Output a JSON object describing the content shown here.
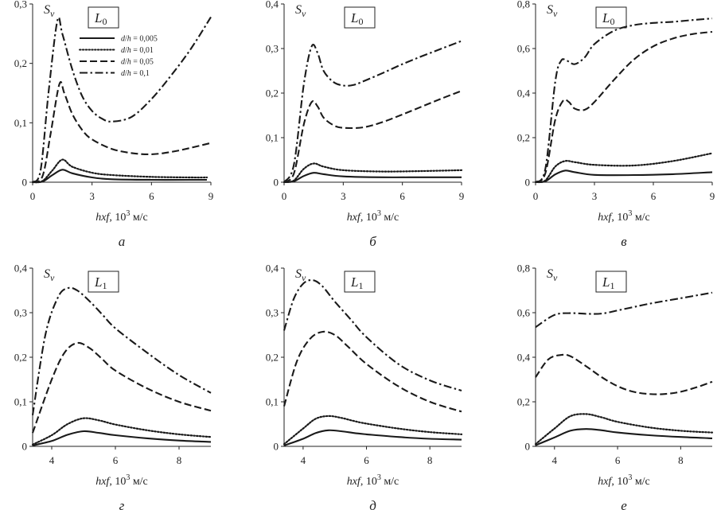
{
  "figure": {
    "legend": [
      {
        "label": "d/h = 0,005",
        "style": "solid"
      },
      {
        "label": "d/h = 0,01",
        "style": "dotted"
      },
      {
        "label": "d/h = 0,05",
        "style": "dashed"
      },
      {
        "label": "d/h = 0,1",
        "style": "dashdot"
      }
    ]
  },
  "chart_data": [
    {
      "type": "line",
      "panel_label": "а",
      "mode_label": "L",
      "mode_sub": "0",
      "ylabel": "S",
      "ylabel_sub": "v",
      "xlabel": "hxf, 10",
      "xlabel_sup": "3",
      "xlabel_unit": " м/с",
      "xlim": [
        0,
        9
      ],
      "ylim": [
        0,
        0.3
      ],
      "xticks": [
        0,
        3,
        6,
        9
      ],
      "xtick_labels": [
        "0",
        "3",
        "6",
        "9"
      ],
      "yticks": [
        0,
        0.1,
        0.2,
        0.3
      ],
      "ytick_labels": [
        "0",
        "0,1",
        "0,2",
        "0,3"
      ],
      "series": [
        {
          "name": "d/h = 0,005",
          "x": [
            0,
            0.5,
            1,
            1.5,
            2,
            3,
            4,
            6,
            8,
            8.8
          ],
          "y": [
            0,
            0.001,
            0.012,
            0.021,
            0.015,
            0.008,
            0.005,
            0.004,
            0.004,
            0.004
          ]
        },
        {
          "name": "d/h = 0,01",
          "x": [
            0,
            0.5,
            1,
            1.5,
            2,
            3,
            4,
            6,
            8,
            8.8
          ],
          "y": [
            0,
            0.002,
            0.02,
            0.038,
            0.026,
            0.016,
            0.012,
            0.009,
            0.008,
            0.008
          ]
        },
        {
          "name": "d/h = 0,05",
          "x": [
            0,
            0.5,
            0.9,
            1.35,
            1.6,
            2,
            2.5,
            3,
            4,
            5,
            6,
            7,
            8,
            9
          ],
          "y": [
            0,
            0.01,
            0.08,
            0.165,
            0.15,
            0.115,
            0.088,
            0.072,
            0.056,
            0.049,
            0.047,
            0.051,
            0.058,
            0.066
          ]
        },
        {
          "name": "d/h = 0,1",
          "x": [
            0,
            0.4,
            0.8,
            1.25,
            1.5,
            2,
            2.5,
            3,
            3.5,
            4,
            5,
            6,
            7,
            8,
            9
          ],
          "y": [
            0,
            0.02,
            0.15,
            0.272,
            0.25,
            0.19,
            0.145,
            0.12,
            0.107,
            0.102,
            0.11,
            0.14,
            0.18,
            0.225,
            0.278
          ]
        }
      ]
    },
    {
      "type": "line",
      "panel_label": "б",
      "mode_label": "L",
      "mode_sub": "0",
      "ylabel": "S",
      "ylabel_sub": "v",
      "xlabel": "hxf, 10",
      "xlabel_sup": "3",
      "xlabel_unit": " м/с",
      "xlim": [
        0,
        9
      ],
      "ylim": [
        0,
        0.4
      ],
      "xticks": [
        0,
        3,
        6,
        9
      ],
      "xtick_labels": [
        "0",
        "3",
        "6",
        "9"
      ],
      "yticks": [
        0,
        0.1,
        0.2,
        0.3,
        0.4
      ],
      "ytick_labels": [
        "0",
        "0,1",
        "0,2",
        "0,3",
        "0,4"
      ],
      "series": [
        {
          "name": "d/h = 0,005",
          "x": [
            0,
            0.5,
            1,
            1.5,
            2,
            3,
            5,
            7,
            9
          ],
          "y": [
            0,
            0.002,
            0.014,
            0.021,
            0.018,
            0.013,
            0.011,
            0.011,
            0.011
          ]
        },
        {
          "name": "d/h = 0,01",
          "x": [
            0,
            0.5,
            1,
            1.5,
            2,
            3,
            5,
            7,
            9
          ],
          "y": [
            0,
            0.004,
            0.03,
            0.042,
            0.035,
            0.027,
            0.024,
            0.025,
            0.027
          ]
        },
        {
          "name": "d/h = 0,05",
          "x": [
            0,
            0.5,
            1,
            1.4,
            1.7,
            2,
            2.5,
            3,
            4,
            5,
            6,
            7,
            8,
            9
          ],
          "y": [
            0,
            0.02,
            0.13,
            0.18,
            0.17,
            0.145,
            0.128,
            0.122,
            0.123,
            0.135,
            0.152,
            0.17,
            0.188,
            0.205
          ]
        },
        {
          "name": "d/h = 0,1",
          "x": [
            0,
            0.5,
            1,
            1.4,
            1.7,
            2,
            2.5,
            3,
            3.5,
            4,
            5,
            6,
            7,
            8,
            9
          ],
          "y": [
            0,
            0.04,
            0.22,
            0.305,
            0.29,
            0.25,
            0.225,
            0.217,
            0.218,
            0.226,
            0.245,
            0.265,
            0.283,
            0.3,
            0.317
          ]
        }
      ]
    },
    {
      "type": "line",
      "panel_label": "в",
      "mode_label": "L",
      "mode_sub": "0",
      "ylabel": "S",
      "ylabel_sub": "v",
      "xlabel": "hxf, 10",
      "xlabel_sup": "3",
      "xlabel_unit": " м/с",
      "xlim": [
        0,
        9
      ],
      "ylim": [
        0,
        0.8
      ],
      "xticks": [
        0,
        3,
        6,
        9
      ],
      "xtick_labels": [
        "0",
        "3",
        "6",
        "9"
      ],
      "yticks": [
        0,
        0.2,
        0.4,
        0.6,
        0.8
      ],
      "ytick_labels": [
        "0",
        "0,2",
        "0,4",
        "0,6",
        "0,8"
      ],
      "series": [
        {
          "name": "d/h = 0,005",
          "x": [
            0,
            0.5,
            1,
            1.5,
            2,
            3,
            5,
            7,
            9
          ],
          "y": [
            0,
            0.004,
            0.035,
            0.052,
            0.045,
            0.033,
            0.032,
            0.036,
            0.045
          ]
        },
        {
          "name": "d/h = 0,01",
          "x": [
            0,
            0.5,
            1,
            1.5,
            2,
            3,
            5,
            7,
            9
          ],
          "y": [
            0,
            0.008,
            0.07,
            0.095,
            0.09,
            0.078,
            0.075,
            0.095,
            0.13
          ]
        },
        {
          "name": "d/h = 0,05",
          "x": [
            0,
            0.5,
            1,
            1.4,
            1.7,
            2,
            2.5,
            3,
            4,
            5,
            6,
            7,
            8,
            9
          ],
          "y": [
            0,
            0.04,
            0.28,
            0.365,
            0.36,
            0.33,
            0.325,
            0.36,
            0.46,
            0.55,
            0.61,
            0.645,
            0.665,
            0.675
          ]
        },
        {
          "name": "d/h = 0,1",
          "x": [
            0,
            0.5,
            1,
            1.3,
            1.6,
            2,
            2.5,
            3,
            4,
            5,
            6,
            7,
            8,
            9
          ],
          "y": [
            0,
            0.06,
            0.45,
            0.545,
            0.545,
            0.53,
            0.56,
            0.62,
            0.68,
            0.705,
            0.715,
            0.72,
            0.728,
            0.735
          ]
        }
      ]
    },
    {
      "type": "line",
      "panel_label": "г",
      "mode_label": "L",
      "mode_sub": "1",
      "ylabel": "S",
      "ylabel_sub": "v",
      "xlabel": "hxf, 10",
      "xlabel_sup": "3",
      "xlabel_unit": " м/с",
      "xlim": [
        3.4,
        9
      ],
      "ylim": [
        0,
        0.4
      ],
      "xticks": [
        4,
        6,
        8
      ],
      "xtick_labels": [
        "4",
        "6",
        "8"
      ],
      "yticks": [
        0,
        0.1,
        0.2,
        0.3,
        0.4
      ],
      "ytick_labels": [
        "0",
        "0,1",
        "0,2",
        "0,3",
        "0,4"
      ],
      "series": [
        {
          "name": "d/h = 0,005",
          "x": [
            3.4,
            4,
            4.5,
            5,
            5.5,
            6,
            7,
            8,
            9
          ],
          "y": [
            0.002,
            0.012,
            0.026,
            0.034,
            0.03,
            0.025,
            0.018,
            0.013,
            0.01
          ]
        },
        {
          "name": "d/h = 0,01",
          "x": [
            3.4,
            4,
            4.5,
            5,
            5.5,
            6,
            7,
            8,
            9
          ],
          "y": [
            0.004,
            0.025,
            0.05,
            0.063,
            0.058,
            0.049,
            0.036,
            0.027,
            0.021
          ]
        },
        {
          "name": "d/h = 0,05",
          "x": [
            3.4,
            4,
            4.4,
            4.8,
            5.2,
            5.6,
            6,
            7,
            8,
            9
          ],
          "y": [
            0.03,
            0.15,
            0.21,
            0.232,
            0.22,
            0.195,
            0.17,
            0.13,
            0.1,
            0.08
          ]
        },
        {
          "name": "d/h = 0,1",
          "x": [
            3.4,
            3.8,
            4.2,
            4.5,
            4.8,
            5.2,
            5.6,
            6,
            7,
            8,
            9
          ],
          "y": [
            0.07,
            0.25,
            0.335,
            0.355,
            0.35,
            0.325,
            0.295,
            0.265,
            0.21,
            0.16,
            0.12
          ]
        }
      ]
    },
    {
      "type": "line",
      "panel_label": "д",
      "mode_label": "L",
      "mode_sub": "1",
      "ylabel": "S",
      "ylabel_sub": "v",
      "xlabel": "hxf, 10",
      "xlabel_sup": "3",
      "xlabel_unit": " м/с",
      "xlim": [
        3.4,
        9
      ],
      "ylim": [
        0,
        0.4
      ],
      "xticks": [
        4,
        6,
        8
      ],
      "xtick_labels": [
        "4",
        "6",
        "8"
      ],
      "yticks": [
        0,
        0.1,
        0.2,
        0.3,
        0.4
      ],
      "ytick_labels": [
        "0",
        "0,1",
        "0,2",
        "0,3",
        "0,4"
      ],
      "series": [
        {
          "name": "d/h = 0,005",
          "x": [
            3.4,
            4,
            4.4,
            4.8,
            5.2,
            5.6,
            6,
            7,
            8,
            9
          ],
          "y": [
            0.002,
            0.017,
            0.03,
            0.036,
            0.034,
            0.03,
            0.027,
            0.021,
            0.017,
            0.015
          ]
        },
        {
          "name": "d/h = 0,01",
          "x": [
            3.4,
            4,
            4.4,
            4.8,
            5.2,
            5.6,
            6,
            7,
            8,
            9
          ],
          "y": [
            0.005,
            0.04,
            0.062,
            0.068,
            0.064,
            0.057,
            0.051,
            0.04,
            0.032,
            0.027
          ]
        },
        {
          "name": "d/h = 0,05",
          "x": [
            3.4,
            3.8,
            4.2,
            4.6,
            5,
            5.4,
            6,
            7,
            8,
            9
          ],
          "y": [
            0.09,
            0.19,
            0.24,
            0.257,
            0.25,
            0.225,
            0.185,
            0.135,
            0.1,
            0.078
          ]
        },
        {
          "name": "d/h = 0,1",
          "x": [
            3.4,
            3.7,
            4,
            4.3,
            4.6,
            5,
            5.5,
            6,
            7,
            8,
            9
          ],
          "y": [
            0.26,
            0.33,
            0.365,
            0.373,
            0.36,
            0.325,
            0.285,
            0.245,
            0.185,
            0.148,
            0.125
          ]
        }
      ]
    },
    {
      "type": "line",
      "panel_label": "е",
      "mode_label": "L",
      "mode_sub": "1",
      "ylabel": "S",
      "ylabel_sub": "v",
      "xlabel": "hxf, 10",
      "xlabel_sup": "3",
      "xlabel_unit": " м/с",
      "xlim": [
        3.4,
        9
      ],
      "ylim": [
        0,
        0.8
      ],
      "xticks": [
        4,
        6,
        8
      ],
      "xtick_labels": [
        "4",
        "6",
        "8"
      ],
      "yticks": [
        0,
        0.2,
        0.4,
        0.6,
        0.8
      ],
      "ytick_labels": [
        "0",
        "0,2",
        "0,4",
        "0,6",
        "0,8"
      ],
      "series": [
        {
          "name": "d/h = 0,005",
          "x": [
            3.4,
            4,
            4.5,
            5,
            5.5,
            6,
            7,
            8,
            9
          ],
          "y": [
            0.005,
            0.04,
            0.07,
            0.078,
            0.072,
            0.062,
            0.05,
            0.042,
            0.036
          ]
        },
        {
          "name": "d/h = 0,01",
          "x": [
            3.4,
            4,
            4.5,
            5,
            5.5,
            6,
            7,
            8,
            9
          ],
          "y": [
            0.01,
            0.08,
            0.135,
            0.145,
            0.13,
            0.11,
            0.085,
            0.07,
            0.062
          ]
        },
        {
          "name": "d/h = 0,05",
          "x": [
            3.4,
            3.8,
            4.2,
            4.5,
            5,
            5.5,
            6,
            6.5,
            7,
            7.5,
            8,
            8.5,
            9
          ],
          "y": [
            0.31,
            0.39,
            0.41,
            0.405,
            0.36,
            0.31,
            0.27,
            0.245,
            0.235,
            0.235,
            0.245,
            0.265,
            0.29
          ]
        },
        {
          "name": "d/h = 0,1",
          "x": [
            3.4,
            4,
            4.5,
            5,
            5.5,
            6,
            6.5,
            7,
            8,
            9
          ],
          "y": [
            0.535,
            0.59,
            0.598,
            0.595,
            0.596,
            0.61,
            0.625,
            0.64,
            0.665,
            0.69
          ]
        }
      ]
    }
  ]
}
